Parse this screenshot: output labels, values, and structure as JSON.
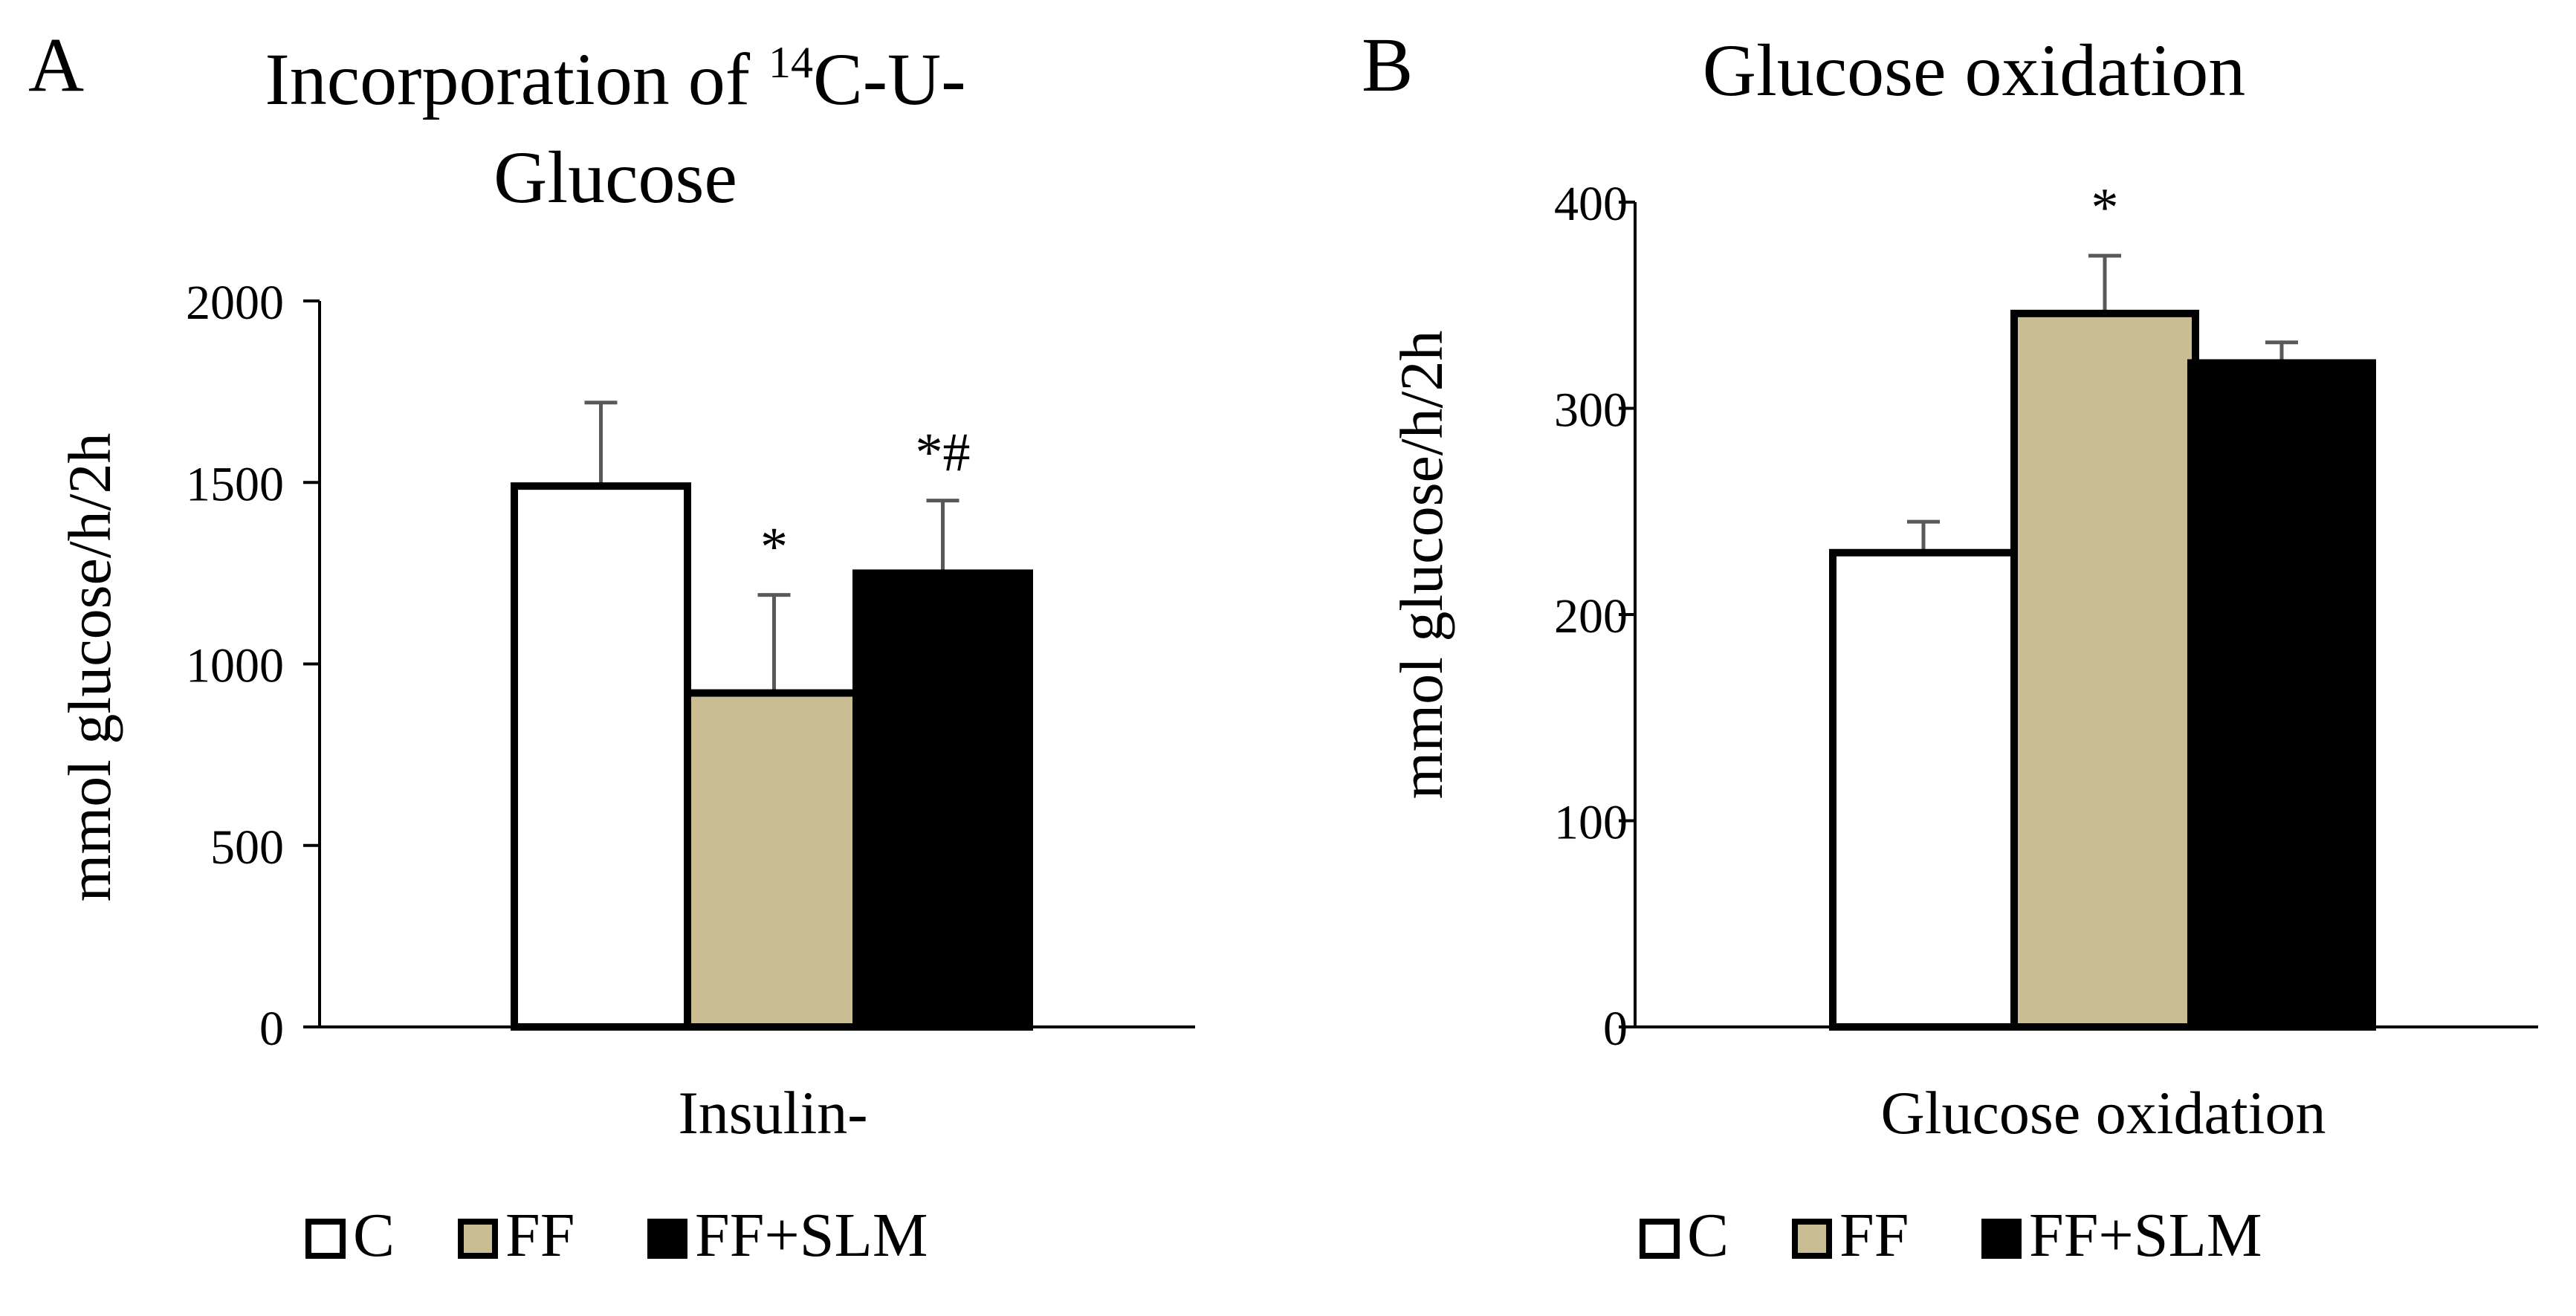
{
  "colors": {
    "C": "#ffffff",
    "FF": "#c8bd93",
    "FF+SLM": "#000000",
    "outline": "#000000",
    "error_bar": "#595959"
  },
  "chart_data": [
    {
      "panel": "A",
      "type": "bar",
      "title_line1": "Incorporation of ",
      "title_sup": "14",
      "title_line1_rest": "C-U-",
      "title_line2": "Glucose",
      "ylabel": "mmol glucose/h/2h",
      "xlabel": "Insulin-",
      "ylim": [
        0,
        2000
      ],
      "yticks": [
        0,
        500,
        1000,
        1500,
        2000
      ],
      "series": [
        {
          "name": "C",
          "value": 1490,
          "error": 230,
          "annotation": ""
        },
        {
          "name": "FF",
          "value": 920,
          "error": 270,
          "annotation": "*"
        },
        {
          "name": "FF+SLM",
          "value": 1250,
          "error": 200,
          "annotation": "*#"
        }
      ],
      "legend": [
        "C",
        "FF",
        "FF+SLM"
      ]
    },
    {
      "panel": "B",
      "type": "bar",
      "title": "Glucose oxidation",
      "ylabel": "mmol glucose/h/2h",
      "xlabel": "Glucose oxidation",
      "ylim": [
        0,
        400
      ],
      "yticks": [
        0,
        100,
        200,
        300,
        400
      ],
      "series": [
        {
          "name": "C",
          "value": 230,
          "error": 15,
          "annotation": ""
        },
        {
          "name": "FF",
          "value": 346,
          "error": 28,
          "annotation": "*"
        },
        {
          "name": "FF+SLM",
          "value": 322,
          "error": 10,
          "annotation": ""
        }
      ],
      "legend": [
        "C",
        "FF",
        "FF+SLM"
      ]
    }
  ]
}
